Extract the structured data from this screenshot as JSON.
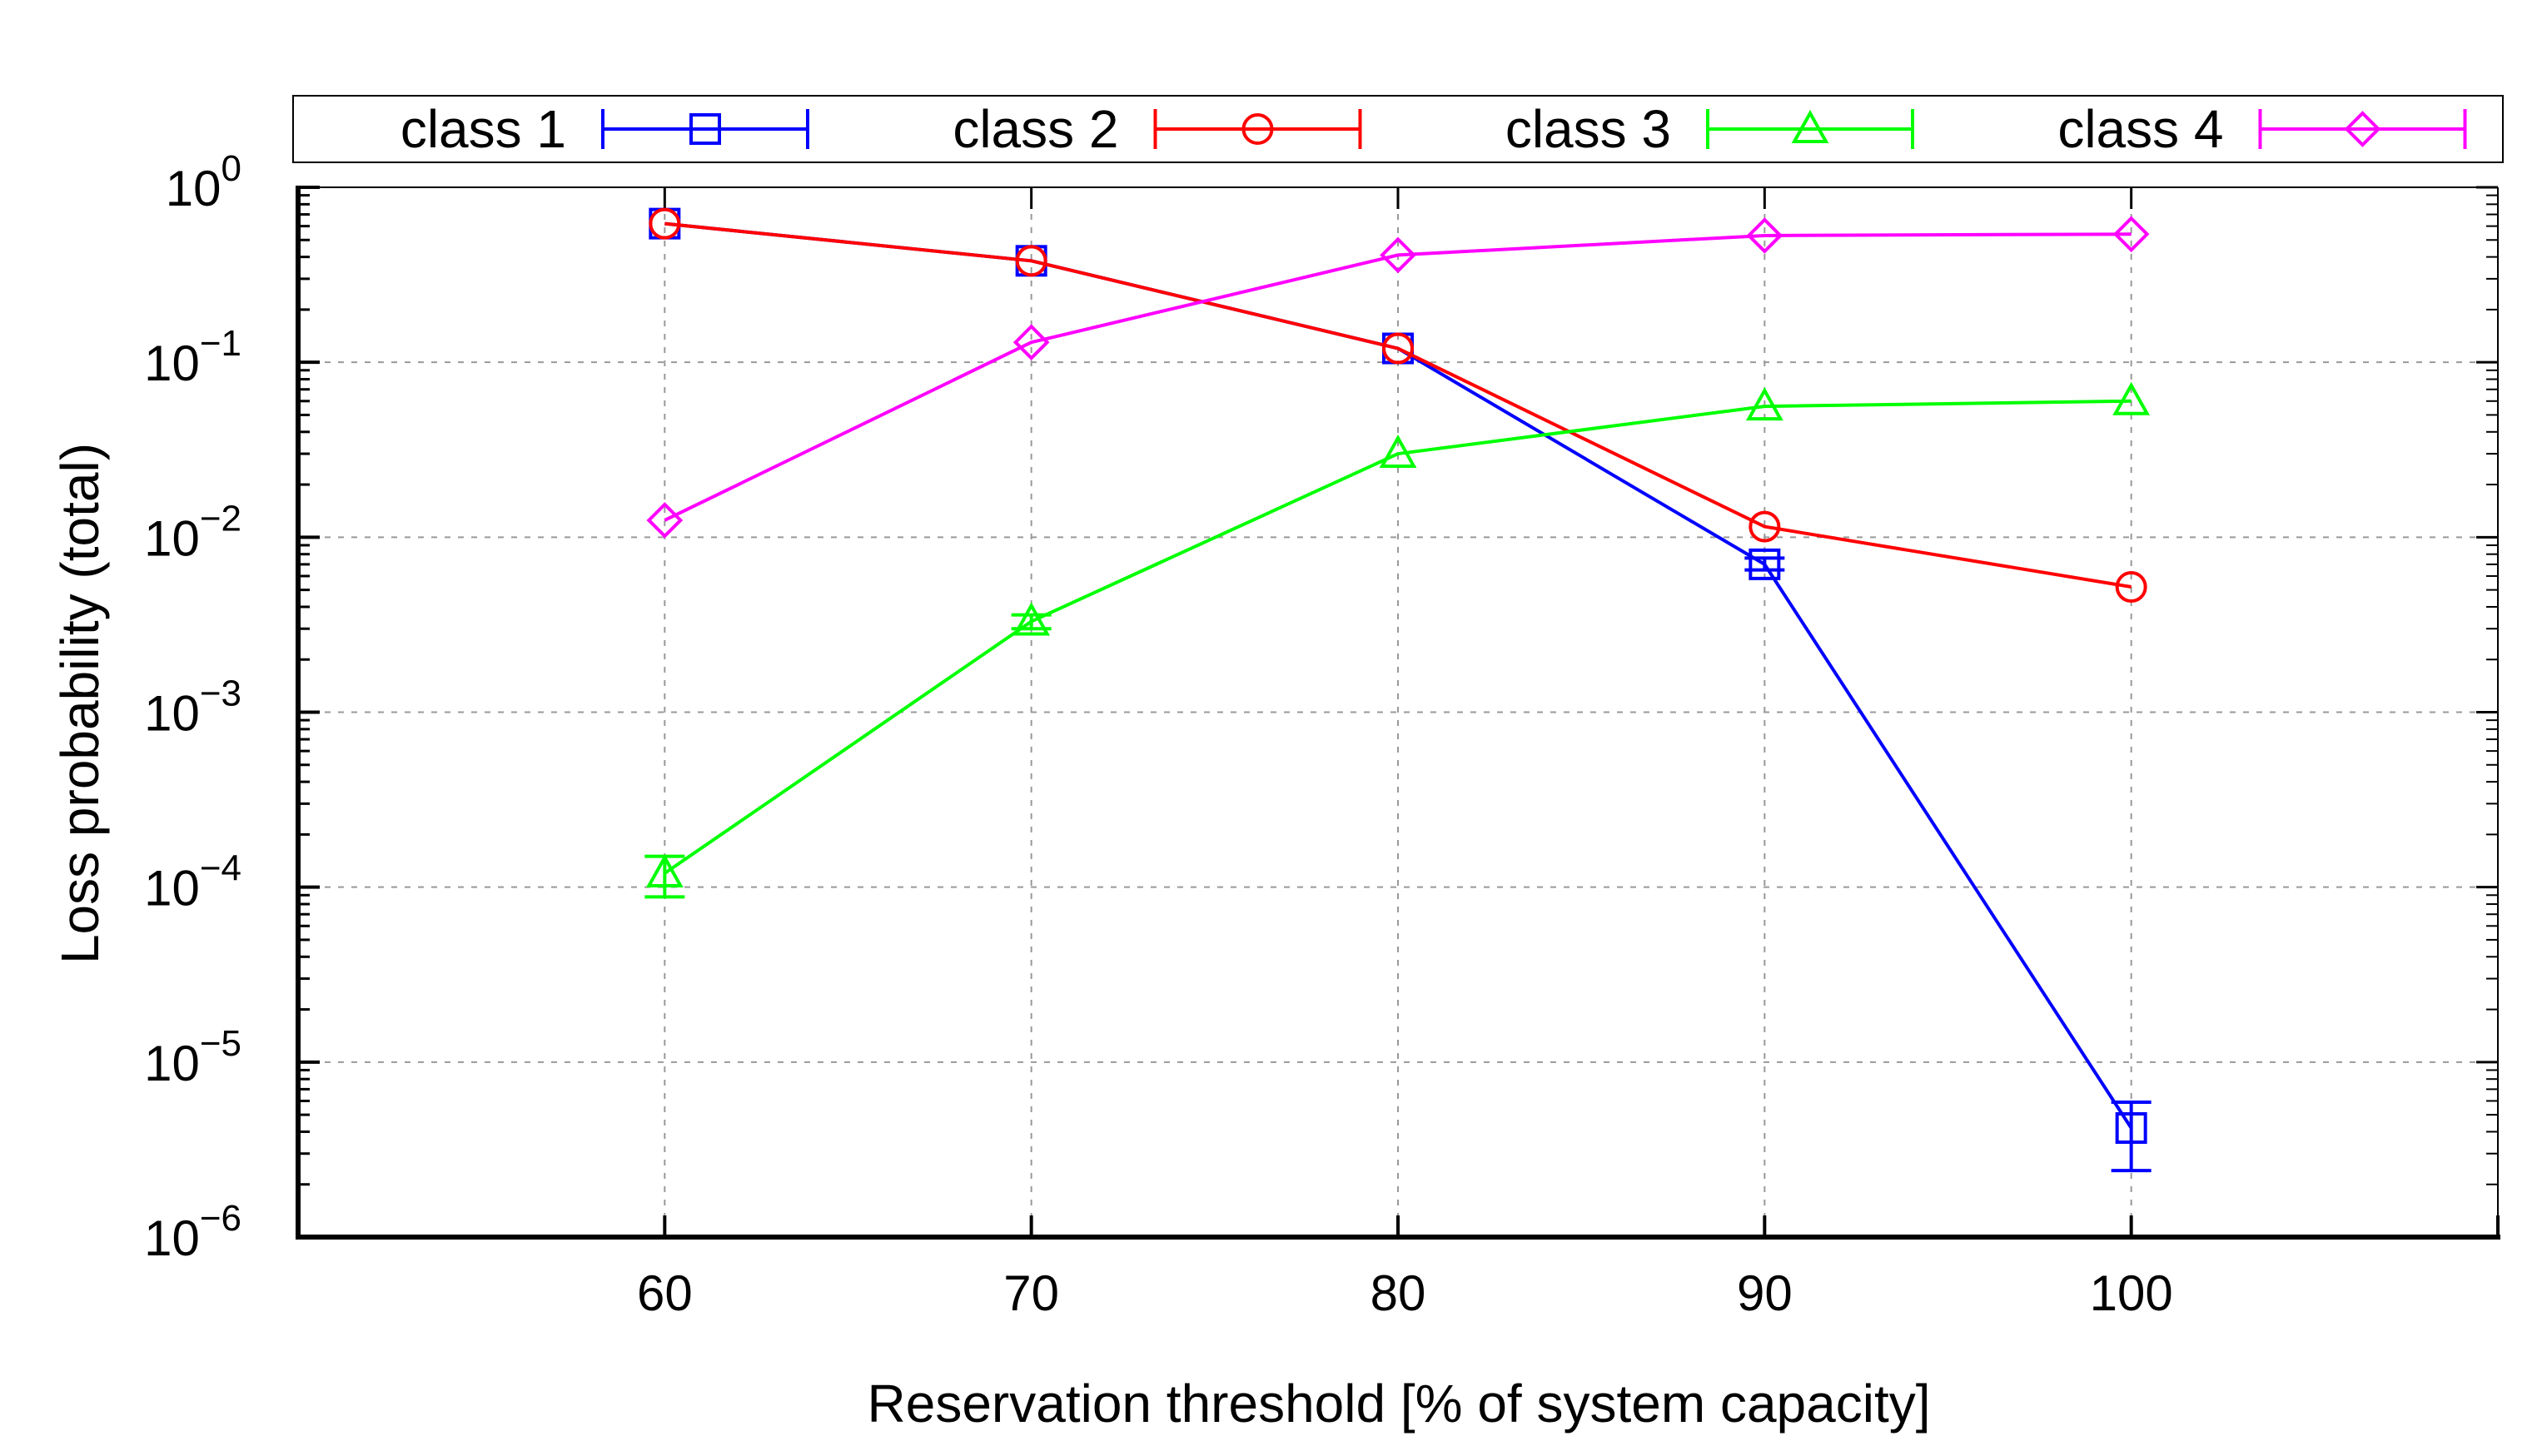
{
  "chart_data": {
    "type": "line",
    "yscale": "log",
    "xlabel": "Reservation threshold [% of system capacity]",
    "ylabel": "Loss probability (total)",
    "x_ticks": [
      60,
      70,
      80,
      90,
      100
    ],
    "xlim": [
      50,
      110
    ],
    "ylim": [
      1e-06,
      1
    ],
    "y_ticks": [
      {
        "value": 1,
        "base": "10",
        "exp": "0"
      },
      {
        "value": 0.1,
        "base": "10",
        "exp": "−1"
      },
      {
        "value": 0.01,
        "base": "10",
        "exp": "−2"
      },
      {
        "value": 0.001,
        "base": "10",
        "exp": "−3"
      },
      {
        "value": 0.0001,
        "base": "10",
        "exp": "−4"
      },
      {
        "value": 1e-05,
        "base": "10",
        "exp": "−5"
      },
      {
        "value": 1e-06,
        "base": "10",
        "exp": "−6"
      }
    ],
    "grid": true,
    "legend_position": "top",
    "series": [
      {
        "name": "class 1",
        "color": "#0000ff",
        "marker": "square",
        "x": [
          60,
          70,
          80,
          90,
          100
        ],
        "y": [
          0.62,
          0.38,
          0.12,
          0.007,
          4.2e-06
        ],
        "err_low": [
          null,
          null,
          null,
          0.0065,
          2.4e-06
        ],
        "err_high": [
          null,
          null,
          null,
          0.0076,
          5.9e-06
        ]
      },
      {
        "name": "class 2",
        "color": "#ff0000",
        "marker": "circle",
        "x": [
          60,
          70,
          80,
          90,
          100
        ],
        "y": [
          0.62,
          0.38,
          0.12,
          0.0115,
          0.0052
        ],
        "err_low": [
          null,
          null,
          null,
          null,
          null
        ],
        "err_high": [
          null,
          null,
          null,
          null,
          null
        ]
      },
      {
        "name": "class 3",
        "color": "#00ff00",
        "marker": "triangle",
        "x": [
          60,
          70,
          80,
          90,
          100
        ],
        "y": [
          0.00012,
          0.0033,
          0.03,
          0.056,
          0.06
        ],
        "err_low": [
          8.8e-05,
          0.003,
          null,
          null,
          null
        ],
        "err_high": [
          0.00015,
          0.0036,
          null,
          null,
          null
        ]
      },
      {
        "name": "class 4",
        "color": "#ff00ff",
        "marker": "diamond",
        "x": [
          60,
          70,
          80,
          90,
          100
        ],
        "y": [
          0.0125,
          0.13,
          0.41,
          0.53,
          0.54
        ],
        "err_low": [
          null,
          null,
          null,
          null,
          null
        ],
        "err_high": [
          null,
          null,
          null,
          null,
          null
        ]
      }
    ]
  }
}
